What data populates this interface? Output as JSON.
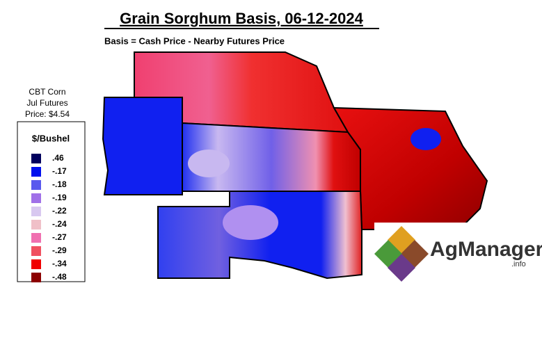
{
  "header": {
    "title": "Grain Sorghum Basis, 06-12-2024",
    "subtitle": "Basis = Cash Price - Nearby Futures Price"
  },
  "futures_note": [
    "CBT Corn",
    "Jul Futures",
    "Price: $4.54"
  ],
  "legend": {
    "title": "$/Bushel",
    "items": [
      {
        "label": ".46",
        "color": "#00005e"
      },
      {
        "label": "-.17",
        "color": "#0010ee"
      },
      {
        "label": "-.18",
        "color": "#5a5aee"
      },
      {
        "label": "-.19",
        "color": "#a070e8"
      },
      {
        "label": "-.22",
        "color": "#d8c8f0"
      },
      {
        "label": "-.24",
        "color": "#f0c0c8"
      },
      {
        "label": "-.27",
        "color": "#f070b0"
      },
      {
        "label": "-.29",
        "color": "#f05060"
      },
      {
        "label": "-.34",
        "color": "#f00000"
      },
      {
        "label": "-.48",
        "color": "#8c0000"
      }
    ]
  },
  "logo": {
    "name": "AgManager",
    "suffix": ".info"
  }
}
